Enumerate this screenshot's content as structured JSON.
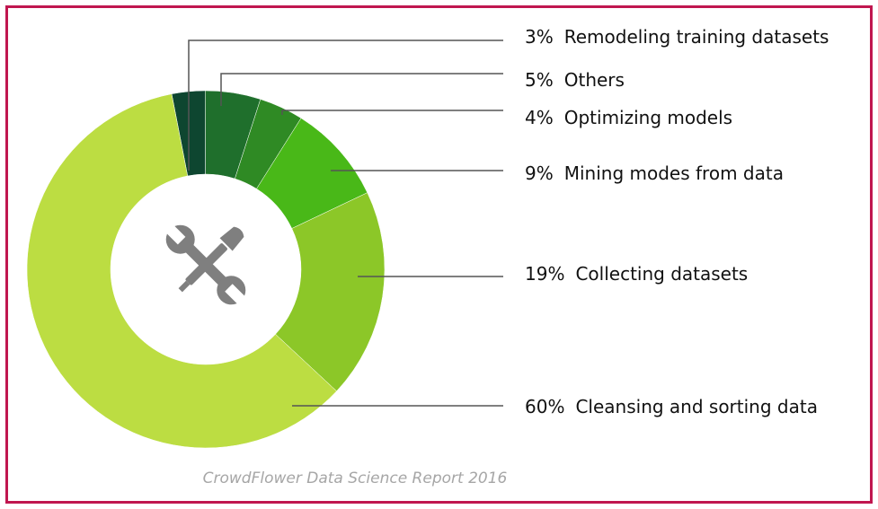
{
  "chart_data": {
    "type": "pie",
    "donut": true,
    "center_icon": "wrench-screwdriver-icon",
    "center_icon_color": "#7f7f7f",
    "slices": [
      {
        "label": "Remodeling training datasets",
        "value": 3,
        "percent_label": "3%",
        "color": "#0e4630"
      },
      {
        "label": "Others",
        "value": 5,
        "percent_label": "5%",
        "color": "#1f6f2c"
      },
      {
        "label": "Optimizing models",
        "value": 4,
        "percent_label": "4%",
        "color": "#2f8a24"
      },
      {
        "label": "Mining modes from data",
        "value": 9,
        "percent_label": "9%",
        "color": "#49b818"
      },
      {
        "label": "Collecting datasets",
        "value": 19,
        "percent_label": "19%",
        "color": "#8cc728"
      },
      {
        "label": "Cleansing and sorting data",
        "value": 60,
        "percent_label": "60%",
        "color": "#bcdd42"
      }
    ],
    "source": "CrowdFlower Data Science Report 2016"
  },
  "colors": {
    "frame_border": "#c0164f",
    "leader_line": "#555555"
  }
}
